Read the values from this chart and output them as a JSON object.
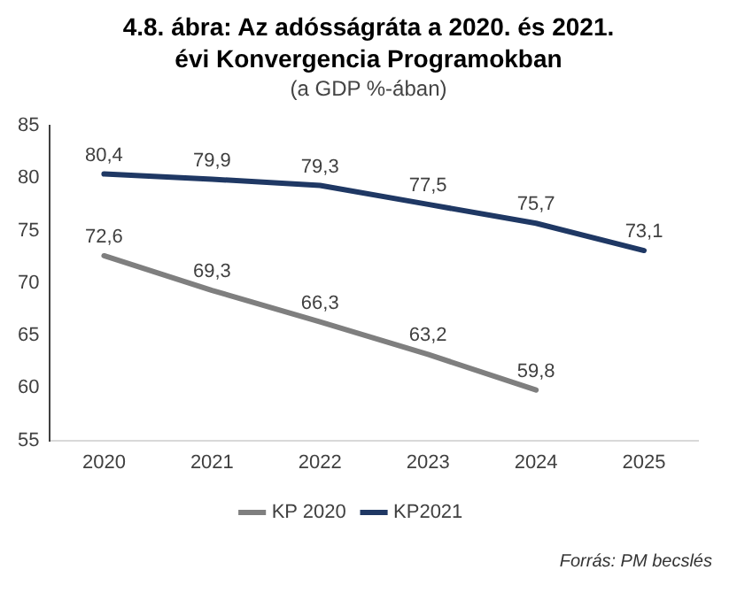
{
  "chart_data": {
    "type": "line",
    "title": "4.8. ábra: Az adósságráta a 2020. és 2021. évi Konvergencia Programokban",
    "subtitle": "(a GDP %-ában)",
    "annotations": [
      "Forrás: PM  becslés"
    ],
    "categories": [
      "2020",
      "2021",
      "2022",
      "2023",
      "2024",
      "2025"
    ],
    "series": [
      {
        "name": "KP 2020",
        "color": "#7f7f7f",
        "values": [
          72.6,
          69.3,
          66.3,
          63.2,
          59.8,
          null
        ],
        "value_labels": [
          "72,6",
          "69,3",
          "66,3",
          "63,2",
          "59,8",
          null
        ]
      },
      {
        "name": "KP2021",
        "color": "#1f3864",
        "values": [
          80.4,
          79.9,
          79.3,
          77.5,
          75.7,
          73.1
        ],
        "value_labels": [
          "80,4",
          "79,9",
          "79,3",
          "77,5",
          "75,7",
          "73,1"
        ]
      }
    ],
    "ylim": [
      55,
      85
    ],
    "yticks": [
      55,
      60,
      65,
      70,
      75,
      80,
      85
    ],
    "grid": false,
    "legend": "bottom",
    "marker": "none",
    "line_style": "solid"
  }
}
